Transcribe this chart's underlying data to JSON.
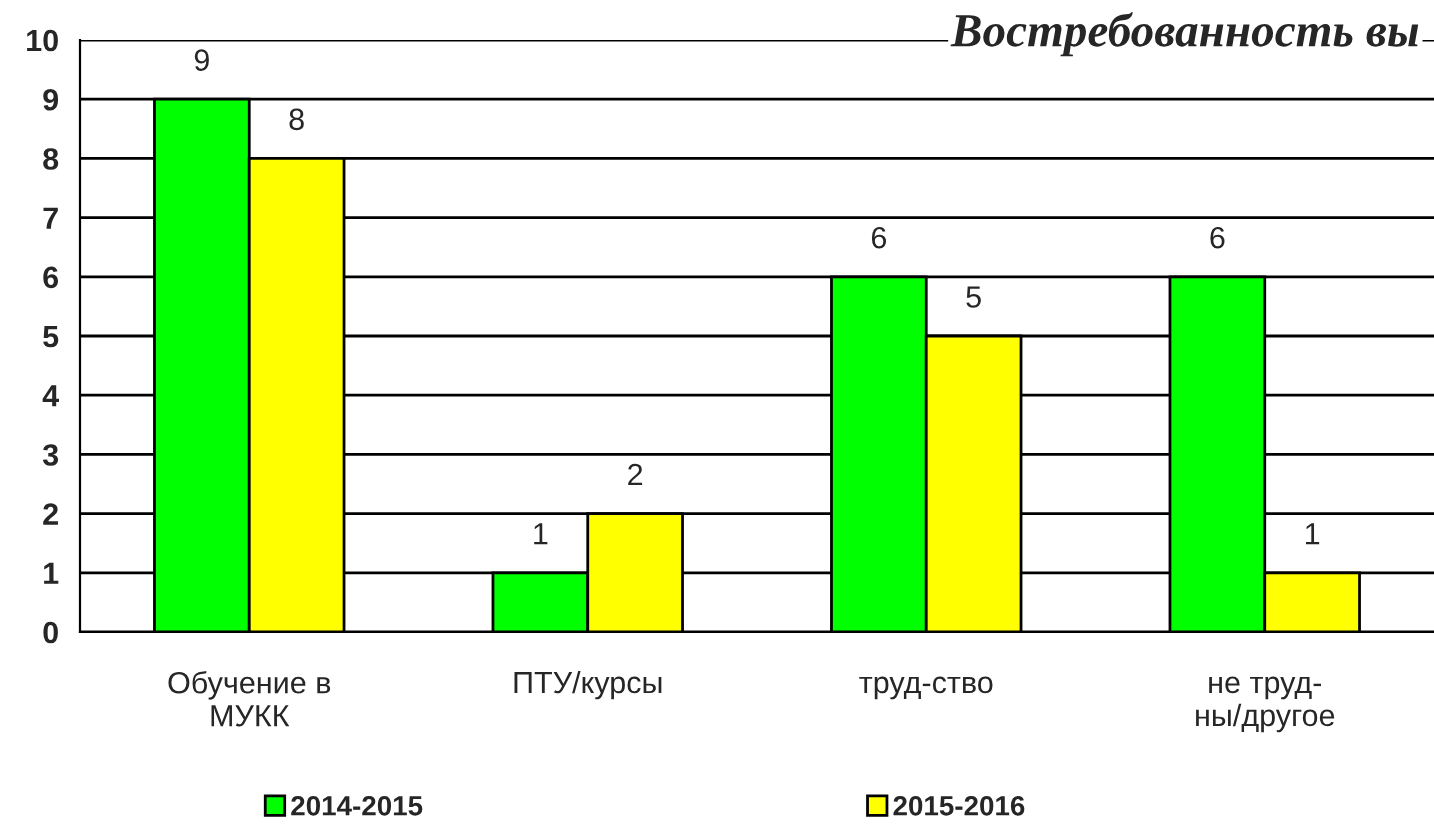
{
  "chart_data": {
    "type": "bar",
    "title": "Востребованность вы",
    "categories": [
      "Обучение в\nМУКК",
      "ПТУ/курсы",
      "труд-ство",
      "не труд-\nны/другое"
    ],
    "series": [
      {
        "name": "2014-2015",
        "color": "#00ff00",
        "values": [
          9,
          1,
          6,
          6
        ]
      },
      {
        "name": "2015-2016",
        "color": "#ffff00",
        "values": [
          8,
          2,
          5,
          1
        ]
      }
    ],
    "ylim": [
      0,
      10
    ],
    "yticks": [
      0,
      1,
      2,
      3,
      4,
      5,
      6,
      7,
      8,
      9,
      10
    ],
    "grid": "y",
    "data_labels": true,
    "legend": "bottom"
  }
}
